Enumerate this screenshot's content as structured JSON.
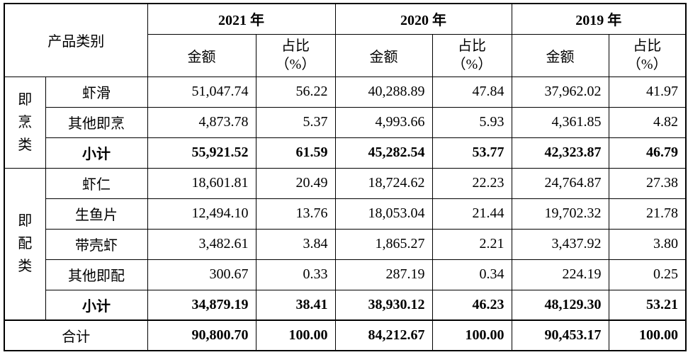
{
  "table": {
    "header": {
      "category": "产品类别",
      "years": [
        "2021 年",
        "2020 年",
        "2019 年"
      ],
      "amount": "金额",
      "ratio_line1": "占比",
      "ratio_line2": "（%）"
    },
    "groups": [
      {
        "label": [
          "即",
          "烹",
          "类"
        ],
        "rows": [
          {
            "name": "虾滑",
            "v": [
              "51,047.74",
              "56.22",
              "40,288.89",
              "47.84",
              "37,962.02",
              "41.97"
            ]
          },
          {
            "name": "其他即烹",
            "v": [
              "4,873.78",
              "5.37",
              "4,993.66",
              "5.93",
              "4,361.85",
              "4.82"
            ]
          },
          {
            "name": "小计",
            "v": [
              "55,921.52",
              "61.59",
              "45,282.54",
              "53.77",
              "42,323.87",
              "46.79"
            ]
          }
        ]
      },
      {
        "label": [
          "即",
          "配",
          "类"
        ],
        "rows": [
          {
            "name": "虾仁",
            "v": [
              "18,601.81",
              "20.49",
              "18,724.62",
              "22.23",
              "24,764.87",
              "27.38"
            ]
          },
          {
            "name": "生鱼片",
            "v": [
              "12,494.10",
              "13.76",
              "18,053.04",
              "21.44",
              "19,702.32",
              "21.78"
            ]
          },
          {
            "name": "带壳虾",
            "v": [
              "3,482.61",
              "3.84",
              "1,865.27",
              "2.21",
              "3,437.92",
              "3.80"
            ]
          },
          {
            "name": "其他即配",
            "v": [
              "300.67",
              "0.33",
              "287.19",
              "0.34",
              "224.19",
              "0.25"
            ]
          },
          {
            "name": "小计",
            "v": [
              "34,879.19",
              "38.41",
              "38,930.12",
              "46.23",
              "48,129.30",
              "53.21"
            ]
          }
        ]
      }
    ],
    "total": {
      "name": "合计",
      "v": [
        "90,800.70",
        "100.00",
        "84,212.67",
        "100.00",
        "90,453.17",
        "100.00"
      ]
    }
  }
}
